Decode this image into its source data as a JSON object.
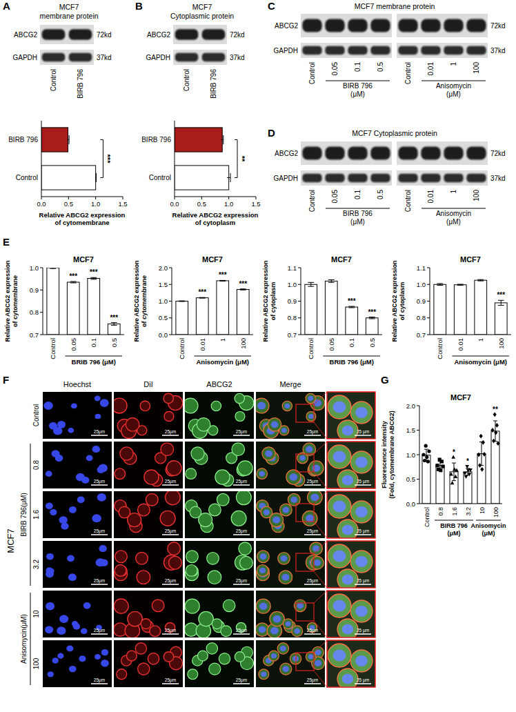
{
  "panel_letters": [
    "A",
    "B",
    "C",
    "D",
    "E",
    "F",
    "G"
  ],
  "blots": [
    {
      "title": "MCF7 membrane protein",
      "rows": [
        {
          "protein": "ABCG2",
          "size": "72kd"
        },
        {
          "protein": "GAPDH",
          "size": "37kd"
        }
      ],
      "groups": [
        {
          "lanes": [
            "Control",
            "BIRB 796"
          ]
        }
      ]
    },
    {
      "title": "MCF7 Cytoplasmic protein",
      "rows": [
        {
          "protein": "ABCG2",
          "size": "72kd"
        },
        {
          "protein": "GAPDH",
          "size": "37kd"
        }
      ],
      "groups": [
        {
          "lanes": [
            "Control",
            "BIRB 796"
          ]
        }
      ]
    },
    {
      "title": "MCF7 membrane protein",
      "rows": [
        {
          "protein": "ABCG2",
          "size": "72kd"
        },
        {
          "protein": "GAPDH",
          "size": "37kd"
        }
      ],
      "groups": [
        {
          "lanes": [
            "Control",
            "0.05",
            "0.1",
            "0.5"
          ],
          "label": "BIRB 796 (μM)"
        },
        {
          "lanes": [
            "Control",
            "0.01",
            "1",
            "100"
          ],
          "label": "Anisomycin (μM)"
        }
      ]
    },
    {
      "title": "MCF7 Cytoplasmic protein",
      "rows": [
        {
          "protein": "ABCG2",
          "size": "72kd"
        },
        {
          "protein": "GAPDH",
          "size": "37kd"
        }
      ],
      "groups": [
        {
          "lanes": [
            "Control",
            "0.05",
            "0.1",
            "0.5"
          ],
          "label": "BIRB 796 (μM)"
        },
        {
          "lanes": [
            "Control",
            "0.01",
            "1",
            "100"
          ],
          "label": "Anisomycin (μM)"
        }
      ]
    }
  ],
  "chart_data": [
    {
      "type": "bar",
      "orientation": "horizontal",
      "categories": [
        "BIRB 796",
        "Control"
      ],
      "values": [
        0.49,
        1.0
      ],
      "errors": [
        0.02,
        0.01
      ],
      "colors": [
        "#a81c1c",
        "#ffffff"
      ],
      "xlim": [
        0,
        1.5
      ],
      "xticks": [
        {
          "value": 0,
          "label": "0.0"
        },
        0.5,
        {
          "value": 1,
          "label": "1.0"
        },
        1.5
      ],
      "x_label": "Relative ABCG2 expression of cytomembrane",
      "significance": "***"
    },
    {
      "type": "bar",
      "orientation": "horizontal",
      "categories": [
        "BIRB 796",
        "Control"
      ],
      "values": [
        0.88,
        1.0
      ],
      "errors": [
        0.02,
        0.03
      ],
      "colors": [
        "#a81c1c",
        "#ffffff"
      ],
      "xlim": [
        0,
        1.5
      ],
      "xticks": [
        {
          "value": 0,
          "label": "0.0"
        },
        0.5,
        {
          "value": 1,
          "label": "1.0"
        },
        1.5
      ],
      "x_label": "Relative ABCG2 expression of cytoplasm",
      "significance": "**"
    },
    {
      "type": "bar",
      "title": "MCF7",
      "categories": [
        "Control",
        "0.05",
        "0.1",
        "0.5"
      ],
      "values": [
        1.0,
        0.935,
        0.952,
        0.748
      ],
      "errors": [
        0.004,
        0.003,
        0.004,
        0.006
      ],
      "color": "#ffffff",
      "ylim": [
        0.7,
        1.0
      ],
      "yticks": [
        0.7,
        0.8,
        0.9,
        {
          "value": 1,
          "label": "1.0"
        }
      ],
      "y_label": "Relative ABCG2 expression of cytomembrane",
      "x_label": "BRIB 796 (μM)",
      "significance": [
        null,
        "***",
        "***",
        "***"
      ]
    },
    {
      "type": "bar",
      "title": "MCF7",
      "categories": [
        "Control",
        "0.01",
        "1",
        "100"
      ],
      "values": [
        1.0,
        1.1,
        1.61,
        1.35
      ],
      "errors": [
        0.01,
        0.01,
        0.01,
        0.015
      ],
      "color": "#ffffff",
      "ylim": [
        0,
        2
      ],
      "yticks": [
        {
          "value": 0,
          "label": "0.0"
        },
        0.5,
        {
          "value": 1,
          "label": "1.0"
        },
        1.5,
        {
          "value": 2,
          "label": "2.0"
        }
      ],
      "y_label": "Relative ABCG2 expression of cytomembrane",
      "x_label": "Anisomycin (μM)",
      "significance": [
        null,
        "***",
        "***",
        "***"
      ]
    },
    {
      "type": "bar",
      "title": "MCF7",
      "categories": [
        "Control",
        "0.05",
        "0.1",
        "0.5"
      ],
      "values": [
        1.0,
        1.02,
        0.865,
        0.8
      ],
      "errors": [
        0.012,
        0.008,
        0.004,
        0.005
      ],
      "color": "#ffffff",
      "ylim": [
        0.7,
        1.1
      ],
      "yticks": [
        0.7,
        0.8,
        0.9,
        {
          "value": 1,
          "label": "1.0"
        },
        1.1
      ],
      "y_label": "Relative ABCG2 expression of cytoplasm",
      "x_label": "BRIB 796 (μM)",
      "significance": [
        null,
        null,
        "***",
        "***"
      ]
    },
    {
      "type": "bar",
      "title": "MCF7",
      "categories": [
        "Control",
        "0.01",
        "1",
        "100"
      ],
      "values": [
        1.0,
        0.998,
        1.025,
        0.89
      ],
      "errors": [
        0.005,
        0.003,
        0.004,
        0.015
      ],
      "color": "#ffffff",
      "ylim": [
        0.7,
        1.1
      ],
      "yticks": [
        0.7,
        0.8,
        0.9,
        {
          "value": 1,
          "label": "1.0"
        },
        1.1
      ],
      "y_label": "Relative ABCG2 expression of cytoplasm",
      "x_label": "Anisomycin (μM)",
      "significance": [
        null,
        null,
        null,
        "***"
      ]
    },
    {
      "type": "bar",
      "title": "MCF7",
      "categories": [
        "Control",
        "0.8",
        "1.6",
        "3.2",
        "10",
        "100"
      ],
      "values": [
        0.99,
        0.78,
        0.65,
        0.65,
        1.02,
        1.48
      ],
      "errors": [
        0.12,
        0.08,
        0.18,
        0.07,
        0.24,
        0.21
      ],
      "points": [
        [
          1.0,
          0.88,
          1.18,
          0.95,
          0.86,
          1.07
        ],
        [
          0.78,
          0.7,
          0.9,
          0.68,
          0.86,
          0.76
        ],
        [
          0.6,
          0.42,
          0.95,
          0.7,
          0.55,
          0.68
        ],
        [
          0.62,
          0.55,
          0.76,
          0.68,
          0.6,
          0.69
        ],
        [
          1.0,
          0.78,
          1.38,
          0.7,
          1.25,
          1.01
        ],
        [
          1.5,
          1.28,
          1.82,
          1.45,
          1.6,
          1.23
        ]
      ],
      "color": "#ffffff",
      "ylim": [
        0,
        2
      ],
      "yticks": [
        {
          "value": 0,
          "label": "0.0"
        },
        0.5,
        {
          "value": 1,
          "label": "1.0"
        },
        1.5,
        {
          "value": 2,
          "label": "2.0"
        }
      ],
      "y_label": "Fluorescence intensity (Fold, cytomembrane ABCG2)",
      "groups": [
        {
          "label": "BIRB 796 (μM)",
          "first": 1,
          "last": 3
        },
        {
          "label": "Anisomycin (μM)",
          "first": 4,
          "last": 5
        }
      ],
      "significance": [
        null,
        null,
        "*",
        "*",
        null,
        "**"
      ]
    }
  ],
  "microscopy": {
    "cell_line": "MCF7",
    "channels": [
      "Hoechst",
      "DiI",
      "ABCG2",
      "Merge"
    ],
    "rows": [
      "Control",
      "0.8",
      "1.6",
      "3.2",
      "10",
      "100"
    ],
    "groups": [
      {
        "label": "BIRB 796(μM)",
        "first": 1,
        "last": 3
      },
      {
        "label": "Anisomycin(μM)",
        "first": 4,
        "last": 5
      }
    ],
    "scale_bar": "25μm",
    "zoom_scale_bar": "25 μm"
  }
}
